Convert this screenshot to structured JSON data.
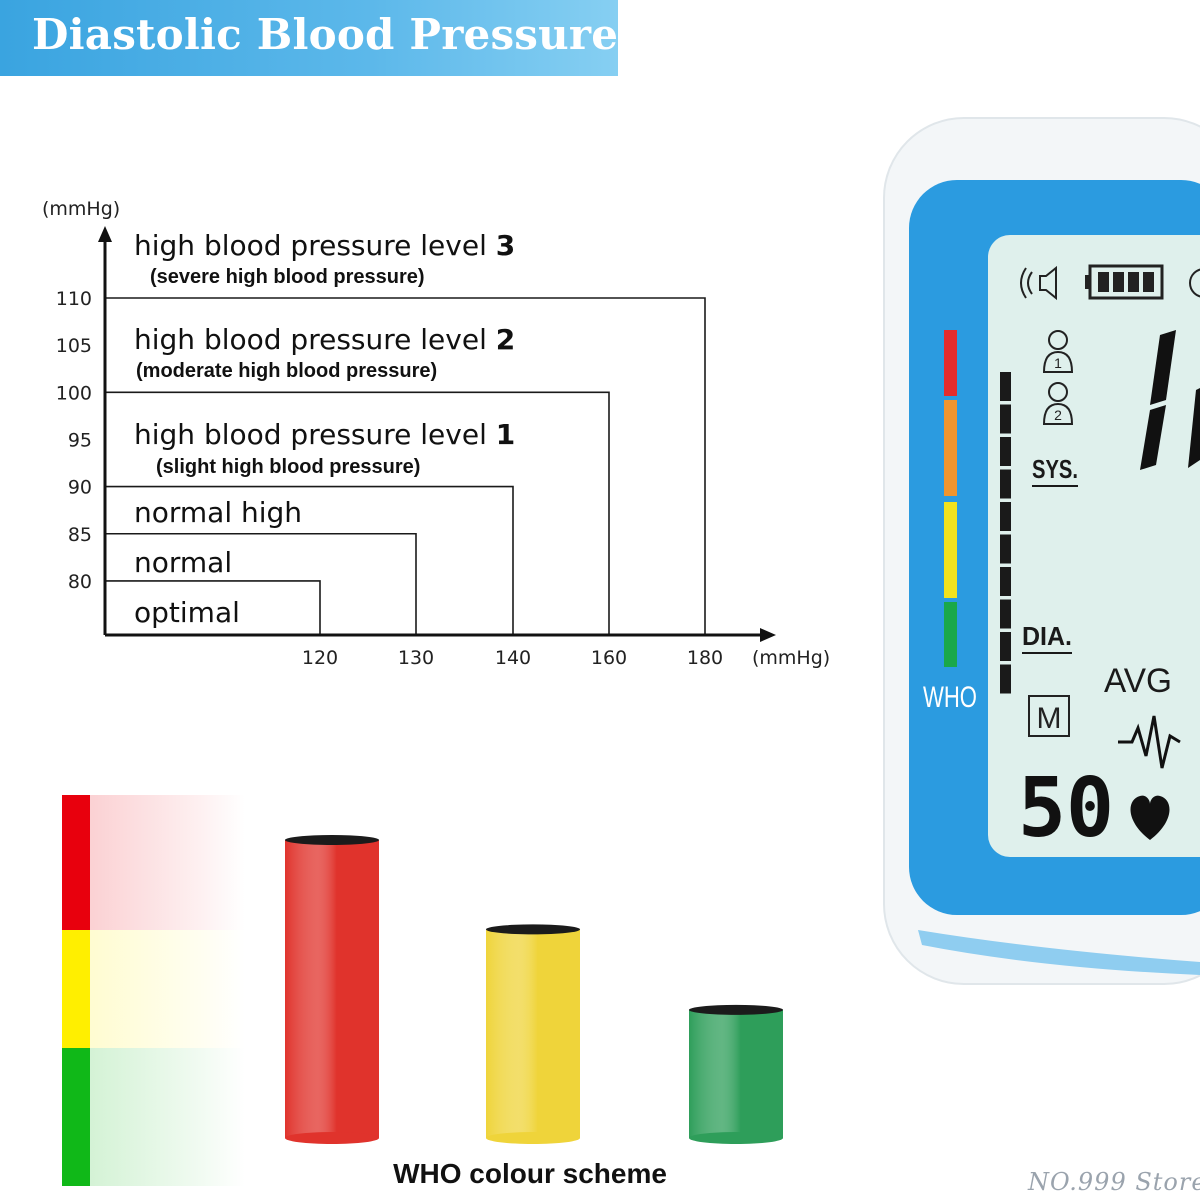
{
  "banner": {
    "title": "Diastolic Blood Pressure"
  },
  "chart_data": [
    {
      "type": "step-region",
      "y_unit": "(mmHg)",
      "x_unit": "(mmHg)",
      "y_ticks": [
        110,
        105,
        100,
        95,
        90,
        85,
        80
      ],
      "x_ticks": [
        120,
        130,
        140,
        160,
        180
      ],
      "ylim": [
        75,
        115
      ],
      "regions": [
        {
          "label": "optimal",
          "sublabel": "",
          "number": "",
          "dia_max": 80,
          "sys_max": 120
        },
        {
          "label": "normal",
          "sublabel": "",
          "number": "",
          "dia_max": 85,
          "sys_max": 130
        },
        {
          "label": "normal high",
          "sublabel": "",
          "number": "",
          "dia_max": 90,
          "sys_max": 140
        },
        {
          "label": "high blood pressure level ",
          "number": "1",
          "sublabel": "(slight high blood pressure)",
          "dia_max": 100,
          "sys_max": 160
        },
        {
          "label": "high blood pressure level ",
          "number": "2",
          "sublabel": "(moderate high blood pressure)",
          "dia_max": 110,
          "sys_max": 180
        },
        {
          "label": "high blood pressure level ",
          "number": "3",
          "sublabel": "(severe high blood pressure)",
          "dia_max": null,
          "sys_max": null
        }
      ]
    },
    {
      "type": "bar",
      "title": "WHO colour scheme",
      "categories": [
        "red",
        "yellow",
        "green"
      ],
      "values": [
        100,
        70,
        43
      ],
      "colors": [
        "#e0332c",
        "#efd43a",
        "#2e9e5a"
      ]
    }
  ],
  "who_scale": {
    "colors": [
      "#e8000d",
      "#ffef00",
      "#10b818"
    ]
  },
  "monitor": {
    "who_label": "WHO",
    "sys_label": "SYS.",
    "dia_label": "DIA.",
    "avg_label": "AVG",
    "memory_label": "M",
    "pulse_value": "50",
    "user1": "1",
    "user2": "2",
    "bar_colors": [
      "#e52c2c",
      "#f0952e",
      "#f2e21e",
      "#1aa84a"
    ],
    "frame_color": "#2b9be0",
    "screen_color": "#dff0ec"
  },
  "watermark": "NO.999 Store"
}
